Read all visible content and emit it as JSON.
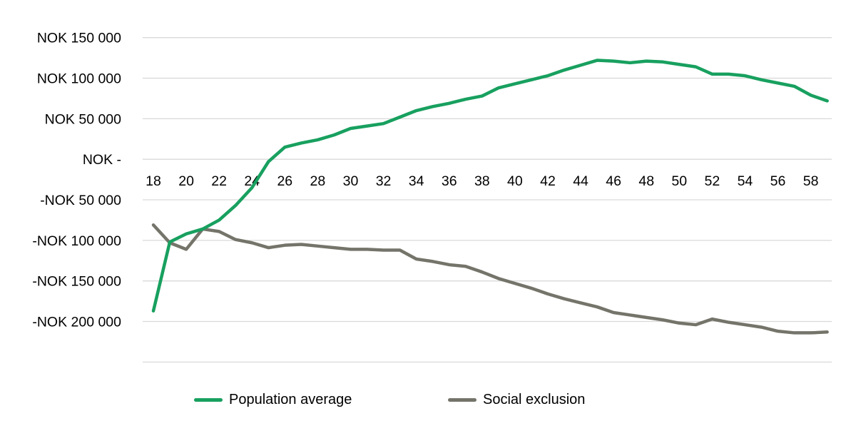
{
  "chart_data": {
    "type": "line",
    "title": "",
    "xlabel": "",
    "ylabel": "",
    "xlim": [
      18,
      59
    ],
    "ylim": [
      -250000,
      150000
    ],
    "grid": "horizontal",
    "legend_position": "bottom",
    "gridline_color": "#d9d9d9",
    "text_color": "#000000",
    "background": "#ffffff",
    "x": [
      18,
      19,
      20,
      21,
      22,
      23,
      24,
      25,
      26,
      27,
      28,
      29,
      30,
      31,
      32,
      33,
      34,
      35,
      36,
      37,
      38,
      39,
      40,
      41,
      42,
      43,
      44,
      45,
      46,
      47,
      48,
      49,
      50,
      51,
      52,
      53,
      54,
      55,
      56,
      57,
      58,
      59
    ],
    "x_tick_labels": [
      18,
      20,
      22,
      24,
      26,
      28,
      30,
      32,
      34,
      36,
      38,
      40,
      42,
      44,
      46,
      48,
      50,
      52,
      54,
      56,
      58
    ],
    "y_ticks": [
      {
        "value": 150000,
        "label": "NOK 150 000"
      },
      {
        "value": 100000,
        "label": "NOK 100 000"
      },
      {
        "value": 50000,
        "label": "NOK 50 000"
      },
      {
        "value": 0,
        "label": "NOK -"
      },
      {
        "value": -50000,
        "label": "-NOK 50 000"
      },
      {
        "value": -100000,
        "label": "-NOK 100 000"
      },
      {
        "value": -150000,
        "label": "-NOK 150 000"
      },
      {
        "value": -200000,
        "label": "-NOK 200 000"
      },
      {
        "value": -250000,
        "label": ""
      }
    ],
    "series": [
      {
        "name": "Population average",
        "color": "#18a05f",
        "values": [
          -187000,
          -102000,
          -92000,
          -86000,
          -75000,
          -57000,
          -35000,
          -3000,
          15000,
          20000,
          24000,
          30000,
          38000,
          41000,
          44000,
          52000,
          60000,
          65000,
          69000,
          74000,
          78000,
          88000,
          93000,
          98000,
          103000,
          110000,
          116000,
          122000,
          121000,
          119000,
          121000,
          120000,
          117000,
          114000,
          105000,
          105000,
          103000,
          98000,
          94000,
          90000,
          79000,
          72000
        ]
      },
      {
        "name": "Social exclusion",
        "color": "#75746a",
        "values": [
          -81000,
          -103000,
          -111000,
          -86000,
          -89000,
          -99000,
          -103000,
          -109000,
          -106000,
          -105000,
          -107000,
          -109000,
          -111000,
          -111000,
          -112000,
          -112000,
          -123000,
          -126000,
          -130000,
          -132000,
          -139000,
          -147000,
          -153000,
          -159000,
          -166000,
          -172000,
          -177000,
          -182000,
          -189000,
          -192000,
          -195000,
          -198000,
          -202000,
          -204000,
          -197000,
          -201000,
          -204000,
          -207000,
          -212000,
          -214000,
          -214000,
          -213000
        ]
      }
    ]
  },
  "legend": {
    "population_label": "Population average",
    "social_label": "Social exclusion"
  }
}
